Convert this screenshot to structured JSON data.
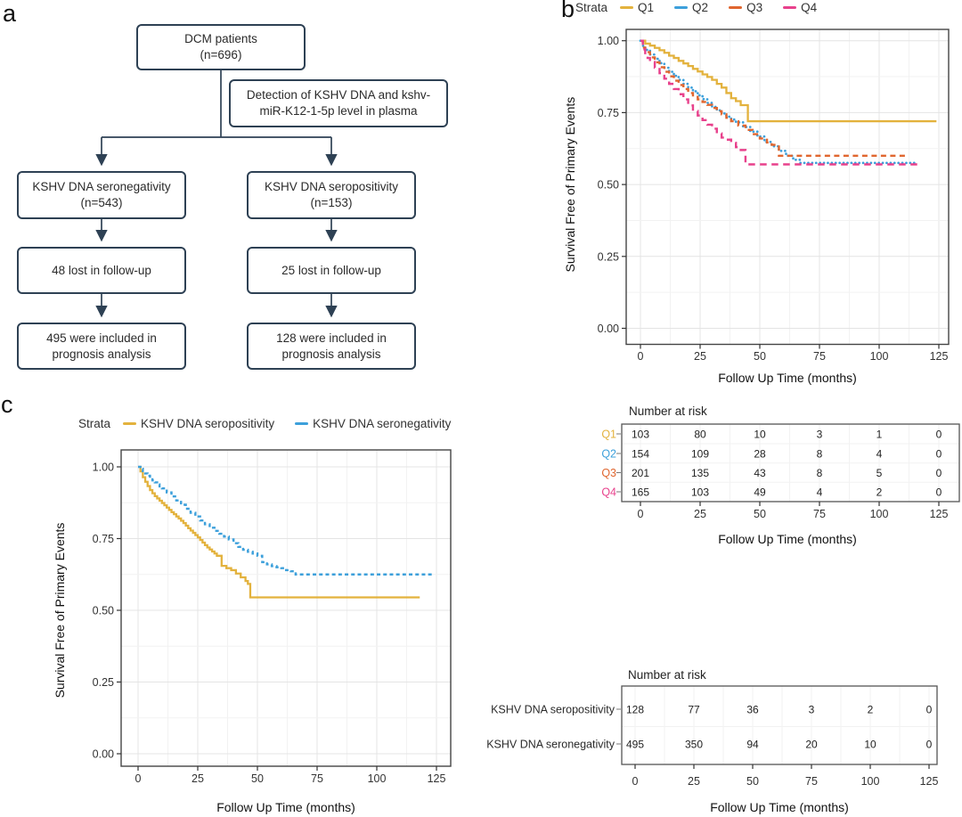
{
  "colors": {
    "q1_gold": "#E3B23D",
    "q2_blue": "#3DA0DB",
    "q3_orange": "#E0662F",
    "q4_magenta": "#E8418C",
    "flow_border": "#2e4154",
    "text": "#2b2b2b",
    "grid_major": "#e4e4e4",
    "grid_minor": "#f2f2f2",
    "plot_border": "#444444"
  },
  "panel_a": {
    "label": "a",
    "box_dcm": {
      "line1": "DCM patients",
      "line2": "(n=696)"
    },
    "box_detection": {
      "line1": "Detection of KSHV DNA and kshv-",
      "line2": "miR-K12-1-5p level in plasma"
    },
    "box_seroneg": {
      "line1": "KSHV DNA seronegativity",
      "line2": "(n=543)"
    },
    "box_seropos": {
      "line1": "KSHV DNA seropositivity",
      "line2": "(n=153)"
    },
    "box_lost_left": "48 lost in follow-up",
    "box_lost_right": "25 lost in follow-up",
    "box_included_left": {
      "line1": "495 were included in",
      "line2": "prognosis analysis"
    },
    "box_included_right": {
      "line1": "128 were included in",
      "line2": "prognosis analysis"
    }
  },
  "chart_data": [
    {
      "id": "b",
      "panel_label": "b",
      "type": "line",
      "subtype": "kaplan-meier-step",
      "legend_title": "Strata",
      "legend_position": "top",
      "grid": true,
      "xlabel": "Follow Up Time (months)",
      "ylabel": "Survival Free of Primary Events",
      "xlim": [
        0,
        125
      ],
      "ylim": [
        0,
        1
      ],
      "xticks": [
        0,
        25,
        50,
        75,
        100,
        125
      ],
      "yticks": [
        0,
        0.25,
        0.5,
        0.75,
        1
      ],
      "ytick_labels": [
        "0.00",
        "0.25",
        "0.50",
        "0.75",
        "1.00"
      ],
      "series": [
        {
          "name": "Q1",
          "color_key": "q1_gold",
          "dash": "solid",
          "points": [
            [
              0,
              1
            ],
            [
              2,
              0.99
            ],
            [
              4,
              0.983
            ],
            [
              6,
              0.975
            ],
            [
              8,
              0.967
            ],
            [
              10,
              0.958
            ],
            [
              12,
              0.948
            ],
            [
              14,
              0.94
            ],
            [
              16,
              0.93
            ],
            [
              18,
              0.921
            ],
            [
              20,
              0.912
            ],
            [
              22,
              0.902
            ],
            [
              24,
              0.893
            ],
            [
              26,
              0.883
            ],
            [
              28,
              0.874
            ],
            [
              30,
              0.864
            ],
            [
              32,
              0.85
            ],
            [
              34,
              0.837
            ],
            [
              36,
              0.818
            ],
            [
              38,
              0.8
            ],
            [
              40,
              0.79
            ],
            [
              42,
              0.776
            ],
            [
              45,
              0.72
            ],
            [
              124,
              0.72
            ]
          ]
        },
        {
          "name": "Q2",
          "color_key": "q2_blue",
          "dash": "dotted",
          "points": [
            [
              0,
              1
            ],
            [
              1,
              0.982
            ],
            [
              2,
              0.968
            ],
            [
              4,
              0.952
            ],
            [
              6,
              0.937
            ],
            [
              8,
              0.922
            ],
            [
              10,
              0.906
            ],
            [
              12,
              0.892
            ],
            [
              14,
              0.878
            ],
            [
              16,
              0.864
            ],
            [
              18,
              0.85
            ],
            [
              20,
              0.837
            ],
            [
              22,
              0.824
            ],
            [
              24,
              0.81
            ],
            [
              26,
              0.797
            ],
            [
              28,
              0.784
            ],
            [
              30,
              0.77
            ],
            [
              32,
              0.758
            ],
            [
              34,
              0.747
            ],
            [
              36,
              0.736
            ],
            [
              38,
              0.726
            ],
            [
              40,
              0.716
            ],
            [
              43,
              0.7
            ],
            [
              46,
              0.684
            ],
            [
              49,
              0.667
            ],
            [
              52,
              0.648
            ],
            [
              55,
              0.633
            ],
            [
              58,
              0.617
            ],
            [
              61,
              0.6
            ],
            [
              64,
              0.586
            ],
            [
              67,
              0.575
            ],
            [
              116,
              0.575
            ]
          ]
        },
        {
          "name": "Q3",
          "color_key": "q3_orange",
          "dash": "dashed",
          "points": [
            [
              0,
              1
            ],
            [
              1,
              0.976
            ],
            [
              2,
              0.96
            ],
            [
              4,
              0.942
            ],
            [
              6,
              0.925
            ],
            [
              8,
              0.908
            ],
            [
              10,
              0.892
            ],
            [
              12,
              0.876
            ],
            [
              14,
              0.861
            ],
            [
              16,
              0.846
            ],
            [
              18,
              0.832
            ],
            [
              20,
              0.818
            ],
            [
              22,
              0.805
            ],
            [
              24,
              0.796
            ],
            [
              26,
              0.787
            ],
            [
              28,
              0.777
            ],
            [
              30,
              0.766
            ],
            [
              32,
              0.755
            ],
            [
              34,
              0.744
            ],
            [
              36,
              0.732
            ],
            [
              38,
              0.72
            ],
            [
              41,
              0.705
            ],
            [
              44,
              0.69
            ],
            [
              47,
              0.675
            ],
            [
              50,
              0.66
            ],
            [
              53,
              0.646
            ],
            [
              55,
              0.638
            ],
            [
              58,
              0.6
            ],
            [
              112,
              0.6
            ]
          ]
        },
        {
          "name": "Q4",
          "color_key": "q4_magenta",
          "dash": "longdash",
          "points": [
            [
              0,
              1
            ],
            [
              1,
              0.97
            ],
            [
              2,
              0.953
            ],
            [
              3,
              0.94
            ],
            [
              4,
              0.926
            ],
            [
              6,
              0.906
            ],
            [
              8,
              0.887
            ],
            [
              10,
              0.868
            ],
            [
              12,
              0.85
            ],
            [
              14,
              0.832
            ],
            [
              16,
              0.814
            ],
            [
              18,
              0.796
            ],
            [
              20,
              0.775
            ],
            [
              22,
              0.756
            ],
            [
              24,
              0.74
            ],
            [
              26,
              0.724
            ],
            [
              28,
              0.708
            ],
            [
              30,
              0.694
            ],
            [
              32,
              0.678
            ],
            [
              34,
              0.663
            ],
            [
              36,
              0.656
            ],
            [
              38,
              0.645
            ],
            [
              40,
              0.63
            ],
            [
              42,
              0.62
            ],
            [
              44,
              0.57
            ],
            [
              117,
              0.57
            ]
          ]
        }
      ],
      "risk_table": {
        "title": "Number at risk",
        "xlabel": "Follow Up Time (months)",
        "xticks": [
          0,
          25,
          50,
          75,
          100,
          125
        ],
        "rows": [
          {
            "name": "Q1",
            "color_key": "q1_gold",
            "values": [
              103,
              80,
              10,
              3,
              1,
              0
            ]
          },
          {
            "name": "Q2",
            "color_key": "q2_blue",
            "values": [
              154,
              109,
              28,
              8,
              4,
              0
            ]
          },
          {
            "name": "Q3",
            "color_key": "q3_orange",
            "values": [
              201,
              135,
              43,
              8,
              5,
              0
            ]
          },
          {
            "name": "Q4",
            "color_key": "q4_magenta",
            "values": [
              165,
              103,
              49,
              4,
              2,
              0
            ]
          }
        ]
      }
    },
    {
      "id": "c",
      "panel_label": "c",
      "type": "line",
      "subtype": "kaplan-meier-step",
      "legend_title": "Strata",
      "legend_position": "top",
      "grid": true,
      "xlabel": "Follow Up Time (months)",
      "ylabel": "Survival Free of Primary Events",
      "xlim": [
        0,
        125
      ],
      "ylim": [
        0,
        1
      ],
      "xticks": [
        0,
        25,
        50,
        75,
        100,
        125
      ],
      "yticks": [
        0,
        0.25,
        0.5,
        0.75,
        1
      ],
      "ytick_labels": [
        "0.00",
        "0.25",
        "0.50",
        "0.75",
        "1.00"
      ],
      "series": [
        {
          "name": "KSHV DNA seropositivity",
          "color_key": "q1_gold",
          "dash": "solid",
          "points": [
            [
              0,
              1
            ],
            [
              1,
              0.984
            ],
            [
              2,
              0.964
            ],
            [
              3,
              0.948
            ],
            [
              4,
              0.933
            ],
            [
              5,
              0.919
            ],
            [
              6,
              0.908
            ],
            [
              7,
              0.898
            ],
            [
              8,
              0.89
            ],
            [
              9,
              0.882
            ],
            [
              10,
              0.874
            ],
            [
              11,
              0.866
            ],
            [
              12,
              0.858
            ],
            [
              13,
              0.85
            ],
            [
              14,
              0.842
            ],
            [
              15,
              0.835
            ],
            [
              16,
              0.827
            ],
            [
              17,
              0.82
            ],
            [
              18,
              0.812
            ],
            [
              19,
              0.804
            ],
            [
              20,
              0.795
            ],
            [
              21,
              0.786
            ],
            [
              22,
              0.778
            ],
            [
              23,
              0.77
            ],
            [
              24,
              0.762
            ],
            [
              25,
              0.754
            ],
            [
              26,
              0.745
            ],
            [
              27,
              0.736
            ],
            [
              28,
              0.727
            ],
            [
              29,
              0.719
            ],
            [
              30,
              0.712
            ],
            [
              31,
              0.705
            ],
            [
              32,
              0.698
            ],
            [
              33,
              0.69
            ],
            [
              35,
              0.655
            ],
            [
              37,
              0.647
            ],
            [
              39,
              0.64
            ],
            [
              41,
              0.628
            ],
            [
              43,
              0.615
            ],
            [
              45,
              0.602
            ],
            [
              46,
              0.592
            ],
            [
              47,
              0.545
            ],
            [
              118,
              0.545
            ]
          ]
        },
        {
          "name": "KSHV DNA seronegativity",
          "color_key": "q2_blue",
          "dash": "shortdash",
          "points": [
            [
              0,
              1
            ],
            [
              1,
              0.993
            ],
            [
              2,
              0.985
            ],
            [
              3,
              0.977
            ],
            [
              4,
              0.969
            ],
            [
              5,
              0.961
            ],
            [
              6,
              0.953
            ],
            [
              7,
              0.946
            ],
            [
              8,
              0.939
            ],
            [
              9,
              0.932
            ],
            [
              10,
              0.925
            ],
            [
              12,
              0.911
            ],
            [
              14,
              0.897
            ],
            [
              16,
              0.883
            ],
            [
              18,
              0.868
            ],
            [
              20,
              0.854
            ],
            [
              22,
              0.84
            ],
            [
              24,
              0.827
            ],
            [
              26,
              0.813
            ],
            [
              28,
              0.8
            ],
            [
              30,
              0.788
            ],
            [
              32,
              0.777
            ],
            [
              34,
              0.767
            ],
            [
              36,
              0.757
            ],
            [
              38,
              0.747
            ],
            [
              40,
              0.734
            ],
            [
              42,
              0.721
            ],
            [
              44,
              0.711
            ],
            [
              46,
              0.704
            ],
            [
              48,
              0.698
            ],
            [
              50,
              0.69
            ],
            [
              52,
              0.668
            ],
            [
              54,
              0.66
            ],
            [
              56,
              0.654
            ],
            [
              58,
              0.65
            ],
            [
              60,
              0.647
            ],
            [
              62,
              0.64
            ],
            [
              64,
              0.636
            ],
            [
              66,
              0.625
            ],
            [
              124,
              0.625
            ]
          ]
        }
      ],
      "risk_table": {
        "title": "Number at risk",
        "xlabel": "Follow Up Time (months)",
        "xticks": [
          0,
          25,
          50,
          75,
          100,
          125
        ],
        "rows": [
          {
            "name": "KSHV DNA seropositivity",
            "color_key": "text",
            "values": [
              128,
              77,
              36,
              3,
              2,
              0
            ]
          },
          {
            "name": "KSHV DNA seronegativity",
            "color_key": "text",
            "values": [
              495,
              350,
              94,
              20,
              10,
              0
            ]
          }
        ]
      }
    }
  ]
}
